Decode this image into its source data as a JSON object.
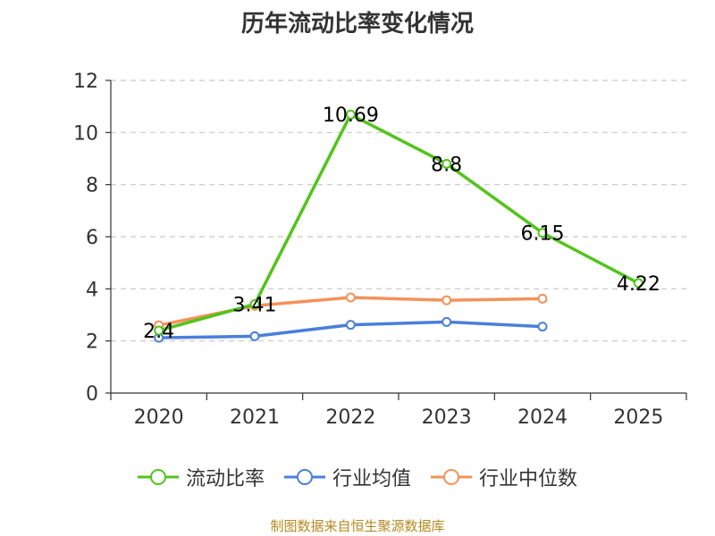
{
  "chart_data": {
    "type": "line",
    "title": "历年流动比率变化情况",
    "categories": [
      "2020",
      "2021",
      "2022",
      "2023",
      "2024",
      "2025"
    ],
    "ylim": [
      0,
      12
    ],
    "yticks": [
      0,
      2,
      4,
      6,
      8,
      10,
      12
    ],
    "grid": true,
    "legend_position": "bottom",
    "series": [
      {
        "name": "流动比率",
        "color": "#52c41a",
        "values": [
          2.4,
          3.41,
          10.69,
          8.8,
          6.15,
          4.22
        ],
        "labels": [
          "2.4",
          "3.41",
          "10.69",
          "8.8",
          "6.15",
          "4.22"
        ]
      },
      {
        "name": "行业均值",
        "color": "#4a7fdb",
        "values": [
          2.12,
          2.18,
          2.62,
          2.73,
          2.55,
          null
        ]
      },
      {
        "name": "行业中位数",
        "color": "#f5915a",
        "values": [
          2.6,
          3.35,
          3.67,
          3.56,
          3.62,
          null
        ]
      }
    ]
  },
  "footer": {
    "source": "制图数据来自恒生聚源数据库"
  }
}
